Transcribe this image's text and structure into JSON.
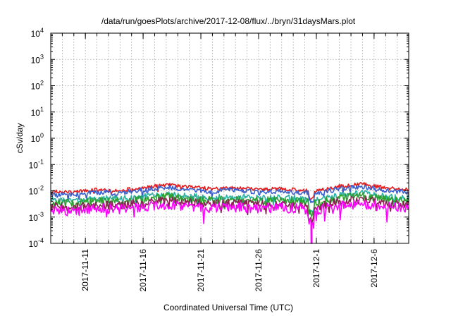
{
  "chart_data": {
    "type": "line",
    "title": "/data/run/goesPlots/archive/2017-12-08/flux/../bryn/31daysMars.plot",
    "xlabel": "Coordinated Universal Time (UTC)",
    "ylabel": "cSv/day",
    "y_scale": "log",
    "ylim": [
      0.0001,
      10000
    ],
    "xlim": [
      "2017-11-08",
      "2017-12-09"
    ],
    "grid": true,
    "legend": "none",
    "y_ticks": [
      {
        "base": "10",
        "exp": "-4"
      },
      {
        "base": "10",
        "exp": "-3"
      },
      {
        "base": "10",
        "exp": "-2"
      },
      {
        "base": "10",
        "exp": "-1"
      },
      {
        "base": "10",
        "exp": "0"
      },
      {
        "base": "10",
        "exp": "1"
      },
      {
        "base": "10",
        "exp": "2"
      },
      {
        "base": "10",
        "exp": "3"
      },
      {
        "base": "10",
        "exp": "4"
      }
    ],
    "x_ticks": [
      {
        "date": "2017-11-11",
        "label": "2017-11-11"
      },
      {
        "date": "2017-11-16",
        "label": "2017-11-16"
      },
      {
        "date": "2017-11-21",
        "label": "2017-11-21"
      },
      {
        "date": "2017-11-26",
        "label": "2017-11-26"
      },
      {
        "date": "2017-12-01",
        "label": "2017-12-1"
      },
      {
        "date": "2017-12-06",
        "label": "2017-12-6"
      }
    ],
    "series": [
      {
        "color": "#e41a1c",
        "x": [
          "2017-11-08",
          "2017-11-10",
          "2017-11-12",
          "2017-11-14",
          "2017-11-16",
          "2017-11-18",
          "2017-11-20",
          "2017-11-22",
          "2017-11-24",
          "2017-11-26",
          "2017-11-28",
          "2017-11-30",
          "2017-12-01",
          "2017-12-03",
          "2017-12-05",
          "2017-12-07",
          "2017-12-09"
        ],
        "y": [
          0.0095,
          0.0088,
          0.011,
          0.0105,
          0.013,
          0.017,
          0.014,
          0.012,
          0.013,
          0.011,
          0.012,
          0.0105,
          0.0095,
          0.015,
          0.018,
          0.013,
          0.011
        ]
      },
      {
        "color": "#3a5fcd",
        "x": [
          "2017-11-08",
          "2017-11-10",
          "2017-11-12",
          "2017-11-14",
          "2017-11-16",
          "2017-11-18",
          "2017-11-20",
          "2017-11-22",
          "2017-11-24",
          "2017-11-26",
          "2017-11-28",
          "2017-11-30",
          "2017-12-01",
          "2017-12-03",
          "2017-12-05",
          "2017-12-07",
          "2017-12-09"
        ],
        "y": [
          0.0078,
          0.0072,
          0.009,
          0.0085,
          0.0105,
          0.014,
          0.011,
          0.0095,
          0.0105,
          0.009,
          0.0095,
          0.0085,
          0.0078,
          0.012,
          0.0145,
          0.0105,
          0.009
        ]
      },
      {
        "color": "#2ab0a0",
        "x": [
          "2017-11-08",
          "2017-11-10",
          "2017-11-12",
          "2017-11-14",
          "2017-11-16",
          "2017-11-18",
          "2017-11-20",
          "2017-11-22",
          "2017-11-24",
          "2017-11-26",
          "2017-11-28",
          "2017-11-30",
          "2017-12-01",
          "2017-12-03",
          "2017-12-05",
          "2017-12-07",
          "2017-12-09"
        ],
        "y": [
          0.0045,
          0.0042,
          0.0052,
          0.005,
          0.006,
          0.0075,
          0.0062,
          0.0055,
          0.006,
          0.0052,
          0.0056,
          0.005,
          0.0045,
          0.0068,
          0.008,
          0.006,
          0.0052
        ]
      },
      {
        "color": "#2ca02c",
        "x": [
          "2017-11-08",
          "2017-11-10",
          "2017-11-12",
          "2017-11-14",
          "2017-11-16",
          "2017-11-18",
          "2017-11-20",
          "2017-11-22",
          "2017-11-24",
          "2017-11-26",
          "2017-11-28",
          "2017-11-30",
          "2017-12-01",
          "2017-12-03",
          "2017-12-05",
          "2017-12-07",
          "2017-12-09"
        ],
        "y": [
          0.0036,
          0.0034,
          0.0042,
          0.004,
          0.0048,
          0.006,
          0.005,
          0.0044,
          0.0048,
          0.0042,
          0.0045,
          0.004,
          0.0036,
          0.0055,
          0.0064,
          0.0048,
          0.0042
        ]
      },
      {
        "color": "#8b2252",
        "x": [
          "2017-11-08",
          "2017-11-10",
          "2017-11-12",
          "2017-11-14",
          "2017-11-16",
          "2017-11-18",
          "2017-11-20",
          "2017-11-22",
          "2017-11-24",
          "2017-11-26",
          "2017-11-28",
          "2017-11-30",
          "2017-12-01",
          "2017-12-03",
          "2017-12-05",
          "2017-12-07",
          "2017-12-09"
        ],
        "y": [
          0.0025,
          0.0023,
          0.0029,
          0.0028,
          0.0034,
          0.0042,
          0.0035,
          0.0031,
          0.0034,
          0.003,
          0.0032,
          0.0028,
          0.0025,
          0.0038,
          0.0045,
          0.0034,
          0.003
        ]
      },
      {
        "color": "#ff00ff",
        "x": [
          "2017-11-08",
          "2017-11-10",
          "2017-11-12",
          "2017-11-14",
          "2017-11-16",
          "2017-11-18",
          "2017-11-20",
          "2017-11-22",
          "2017-11-24",
          "2017-11-26",
          "2017-11-28",
          "2017-11-30",
          "2017-12-01",
          "2017-12-03",
          "2017-12-05",
          "2017-12-07",
          "2017-12-09"
        ],
        "y": [
          0.0018,
          0.0017,
          0.0021,
          0.002,
          0.0024,
          0.003,
          0.0025,
          0.0022,
          0.0024,
          0.0021,
          0.0023,
          0.002,
          0.0018,
          0.0027,
          0.0032,
          0.0024,
          0.0021
        ]
      }
    ],
    "annotations": [
      {
        "type": "dip",
        "x": "2017-11-30T14:00",
        "y": 0.0001,
        "color": "#ff00ff"
      }
    ]
  }
}
